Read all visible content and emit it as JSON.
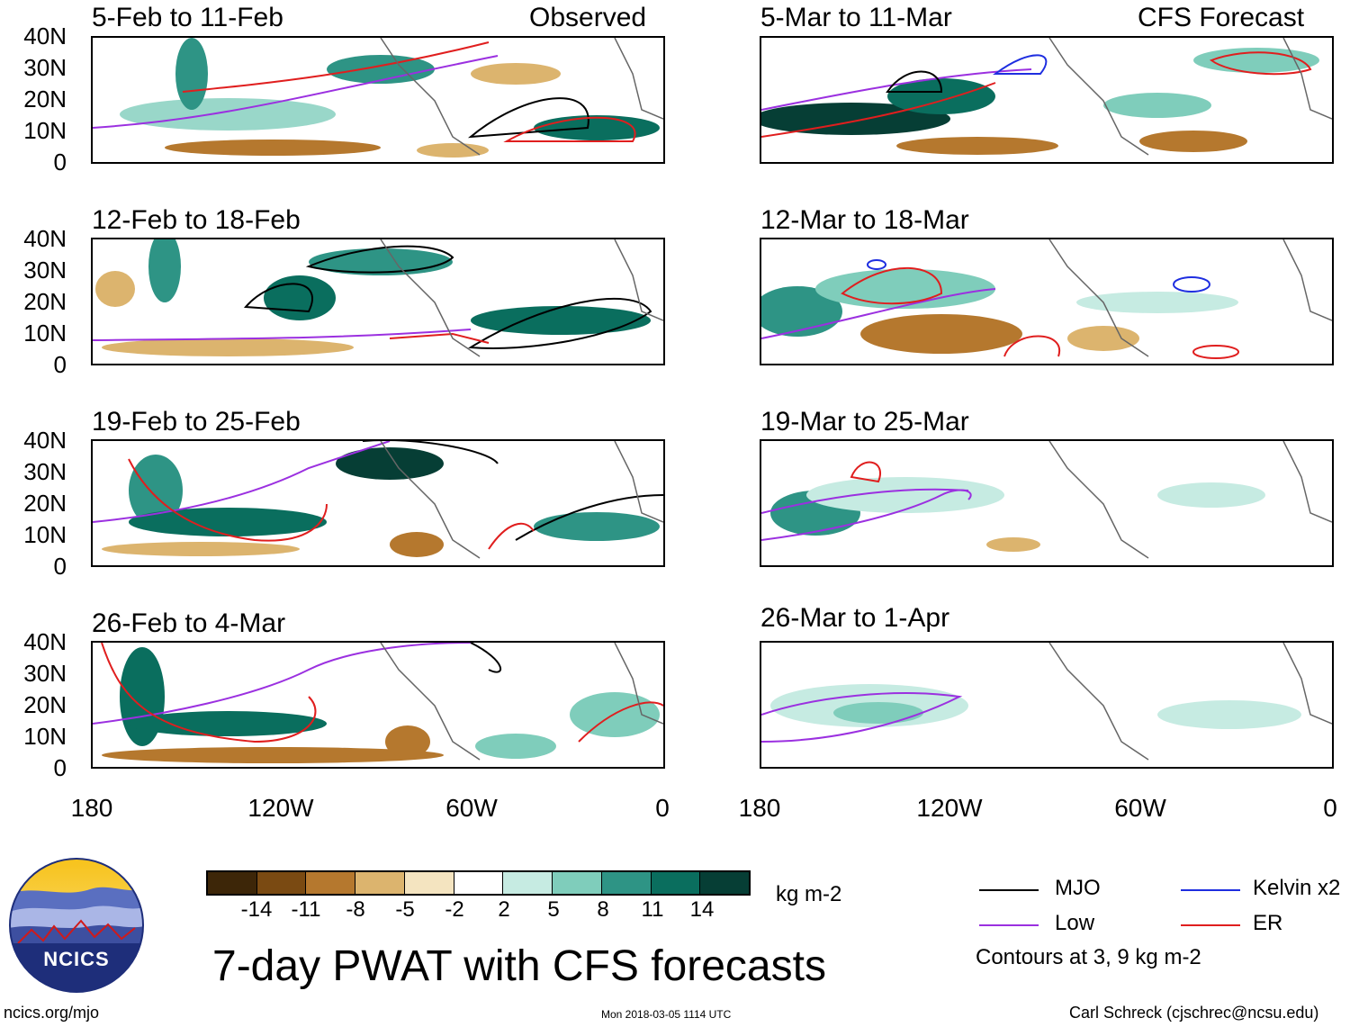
{
  "title": "7-day PWAT with CFS forecasts",
  "units": "kg m-2",
  "observed_label": "Observed",
  "forecast_label": "CFS Forecast",
  "panels_left": [
    {
      "period": "5-Feb to 11-Feb"
    },
    {
      "period": "12-Feb to 18-Feb"
    },
    {
      "period": "19-Feb to 25-Feb"
    },
    {
      "period": "26-Feb to 4-Mar"
    }
  ],
  "panels_right": [
    {
      "period": "5-Mar to 11-Mar"
    },
    {
      "period": "12-Mar to 18-Mar"
    },
    {
      "period": "19-Mar to 25-Mar"
    },
    {
      "period": "26-Mar to 1-Apr"
    }
  ],
  "lat_labels": [
    "40N",
    "30N",
    "20N",
    "10N",
    "0"
  ],
  "lon_labels": [
    "180",
    "120W",
    "60W",
    "0"
  ],
  "colorbar": {
    "labels": [
      "-14",
      "-11",
      "-8",
      "-5",
      "-2",
      "2",
      "5",
      "8",
      "11",
      "14"
    ],
    "colors": [
      "#3d2608",
      "#7a4a12",
      "#b5782e",
      "#dcb46e",
      "#f4e4c0",
      "#ffffff",
      "#c6ebe2",
      "#7fcdbb",
      "#2e9485",
      "#0a6e5e",
      "#063e35"
    ]
  },
  "legend": {
    "mjo": "MJO",
    "kelvin": "Kelvin x2",
    "low": "Low",
    "er": "ER",
    "contours": "Contours at 3, 9 kg m-2",
    "colors": {
      "mjo": "#000000",
      "kelvin": "#1e2ee0",
      "low": "#9b30e0",
      "er": "#e01e1e"
    }
  },
  "footer": {
    "site": "ncics.org/mjo",
    "timestamp": "Mon 2018-03-05 1114 UTC",
    "author": "Carl Schreck (cjschrec@ncsu.edu)",
    "logo_text": "NCICS"
  }
}
